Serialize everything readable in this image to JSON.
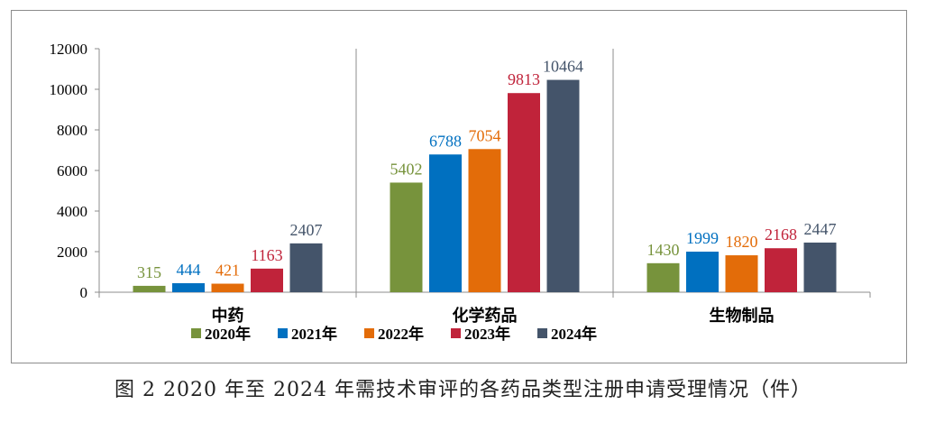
{
  "chart_data": {
    "type": "bar",
    "title": "",
    "xlabel": "",
    "ylabel": "",
    "ylim": [
      0,
      12000
    ],
    "yticks": [
      0,
      2000,
      4000,
      6000,
      8000,
      10000,
      12000
    ],
    "grid": false,
    "legend_position": "bottom",
    "categories": [
      "中药",
      "化学药品",
      "生物制品"
    ],
    "series": [
      {
        "name": "2020年",
        "color": "#77933c",
        "values": [
          315,
          5402,
          1430
        ]
      },
      {
        "name": "2021年",
        "color": "#0070c0",
        "values": [
          444,
          6788,
          1999
        ]
      },
      {
        "name": "2022年",
        "color": "#e36c09",
        "values": [
          421,
          7054,
          1820
        ]
      },
      {
        "name": "2023年",
        "color": "#c0233a",
        "values": [
          1163,
          9813,
          2168
        ]
      },
      {
        "name": "2024年",
        "color": "#44546a",
        "values": [
          2407,
          10464,
          2447
        ]
      }
    ]
  },
  "caption": "图 2   2020 年至 2024 年需技术审评的各药品类型注册申请受理情况（件）"
}
